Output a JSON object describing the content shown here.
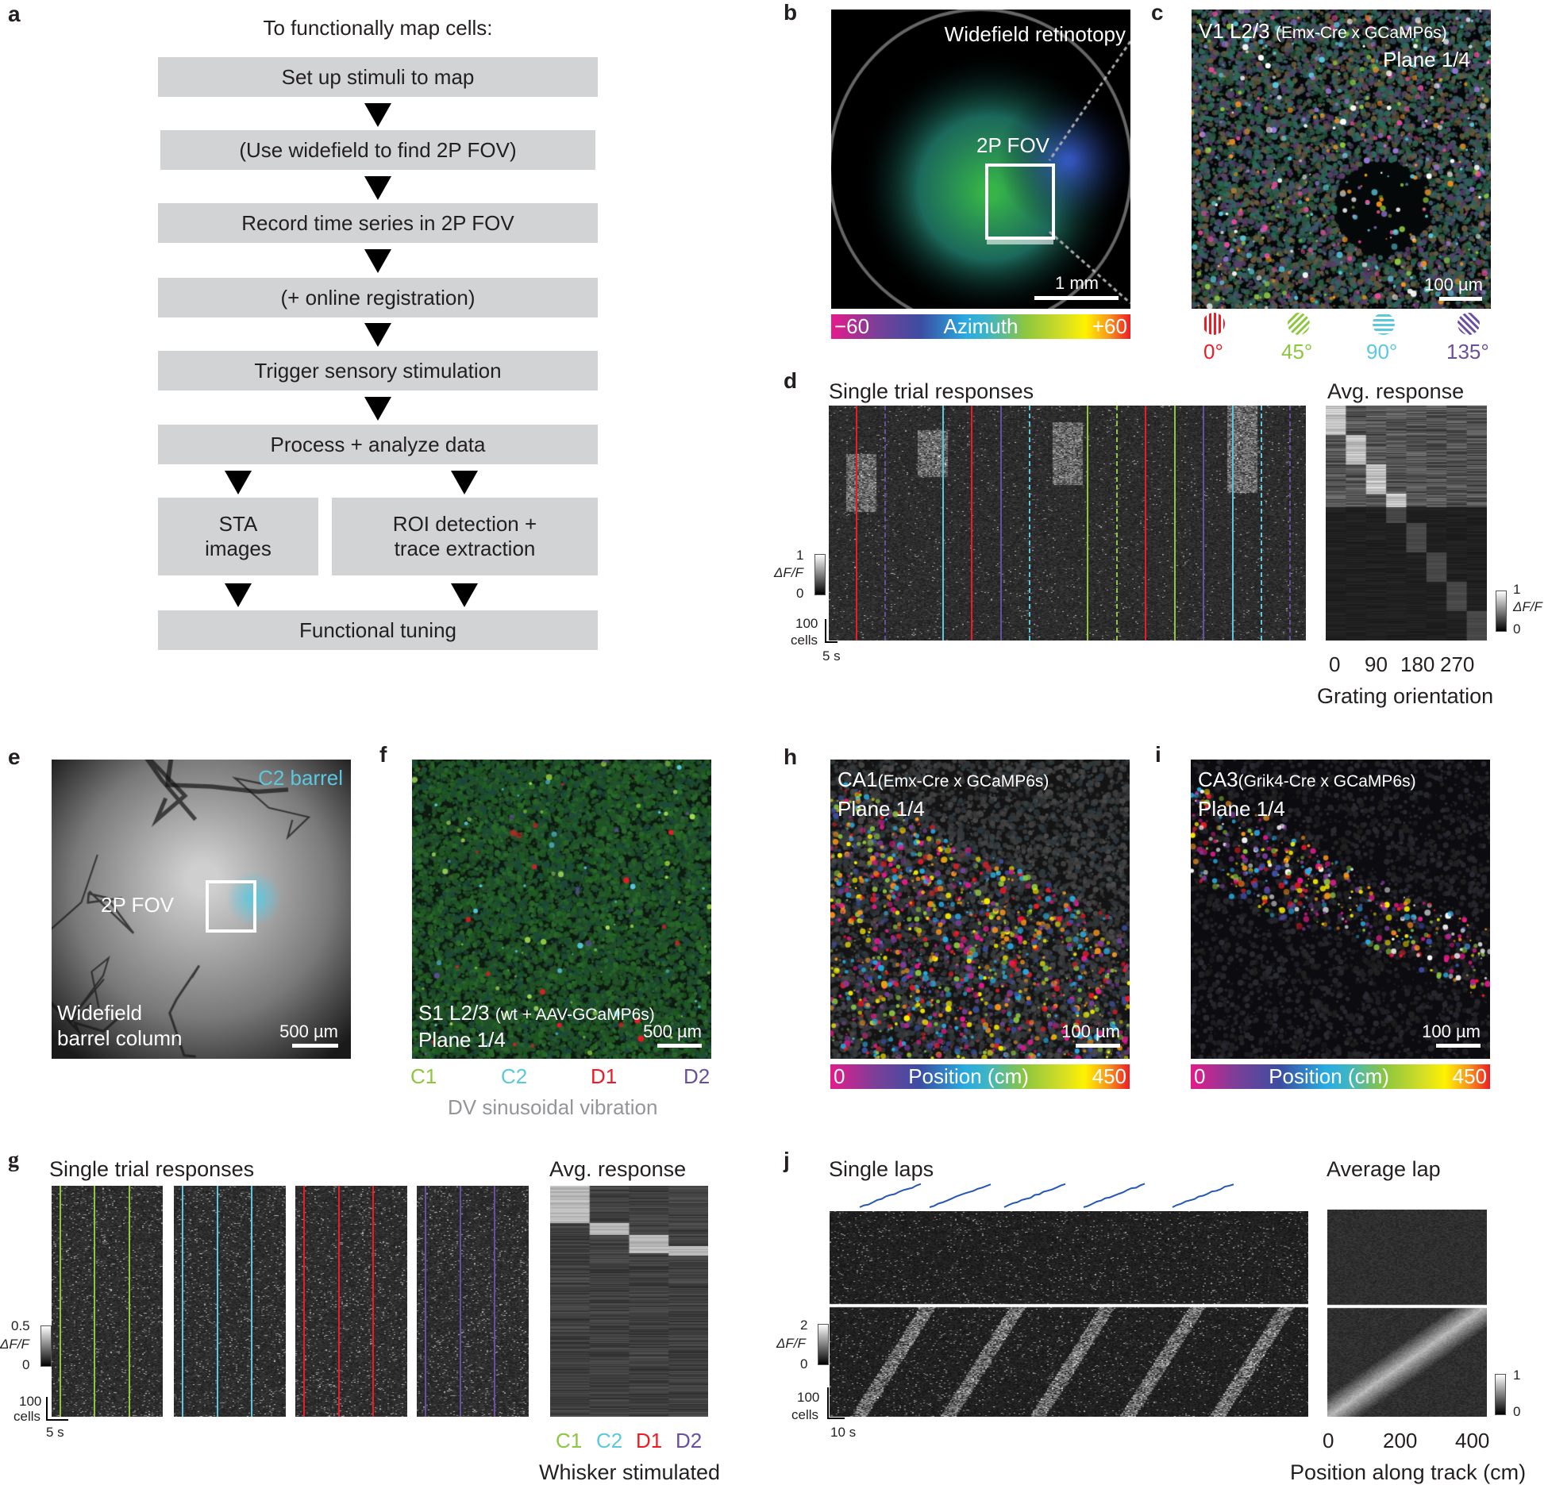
{
  "panel_a": {
    "label": "a",
    "title": "To functionally map cells:",
    "steps": [
      "Set up stimuli to map",
      "(Use widefield to find 2P FOV)",
      "Record time series in 2P FOV",
      "(+ online registration)",
      "Trigger sensory stimulation",
      "Process + analyze data"
    ],
    "branch_left": [
      "STA",
      "images"
    ],
    "branch_right": [
      "ROI detection +",
      "trace extraction"
    ],
    "final": "Functional tuning"
  },
  "panel_b": {
    "label": "b",
    "title": "Widefield retinotopy",
    "fov": "2P FOV",
    "scale": "1 mm",
    "colorbar": {
      "min": "−60",
      "label": "Azimuth",
      "max": "+60"
    }
  },
  "panel_c": {
    "label": "c",
    "title": "V1 L2/3",
    "subtitle": "(Emx-Cre x GCaMP6s)",
    "plane": "Plane 1/4",
    "scale": "100 µm",
    "orientations": [
      {
        "label": "0°",
        "color": "#ed1c24"
      },
      {
        "label": "45°",
        "color": "#8dc63f"
      },
      {
        "label": "90°",
        "color": "#5bc8e0"
      },
      {
        "label": "135°",
        "color": "#6a4fa0"
      }
    ]
  },
  "panel_d": {
    "label": "d",
    "single_title": "Single trial responses",
    "avg_title": "Avg. response",
    "cbar_max": "1",
    "cbar_label": "ΔF/F",
    "cbar_min": "0",
    "cells": "100",
    "cells_unit": "cells",
    "time": "5 s",
    "ticks": [
      "0",
      "90",
      "180",
      "270"
    ],
    "xlabel": "Grating orientation",
    "avg_cbar_max": "1",
    "avg_cbar_min": "0"
  },
  "panel_e": {
    "label": "e",
    "barrel": "C2 barrel",
    "fov": "2P FOV",
    "caption": [
      "Widefield",
      "barrel column"
    ],
    "scale": "500 µm"
  },
  "panel_f": {
    "label": "f",
    "title": "S1 L2/3",
    "subtitle": "(wt + AAV-GCaMP6s)",
    "plane": "Plane 1/4",
    "scale": "500 µm",
    "whiskers": [
      {
        "label": "C1",
        "color": "#8dc63f"
      },
      {
        "label": "C2",
        "color": "#5bc8e0"
      },
      {
        "label": "D1",
        "color": "#ed1c24"
      },
      {
        "label": "D2",
        "color": "#6a4fa0"
      }
    ],
    "stim_label": "DV sinusoidal vibration"
  },
  "panel_g": {
    "label": "g",
    "single_title": "Single trial responses",
    "avg_title": "Avg. response",
    "cbar_max": "0.5",
    "cbar_label": "ΔF/F",
    "cbar_min": "0",
    "cells": "100",
    "cells_unit": "cells",
    "time": "5 s",
    "ticks": [
      "C1",
      "C2",
      "D1",
      "D2"
    ],
    "xlabel": "Whisker stimulated"
  },
  "panel_h": {
    "label": "h",
    "title": "CA1",
    "subtitle": "(Emx-Cre x GCaMP6s)",
    "plane": "Plane 1/4",
    "scale": "100 µm",
    "colorbar": {
      "min": "0",
      "label": "Position (cm)",
      "max": "450"
    }
  },
  "panel_i": {
    "label": "i",
    "title": "CA3",
    "subtitle": "(Grik4-Cre x GCaMP6s)",
    "plane": "Plane 1/4",
    "scale": "100 µm",
    "colorbar": {
      "min": "0",
      "label": "Position (cm)",
      "max": "450"
    }
  },
  "panel_j": {
    "label": "j",
    "single_title": "Single laps",
    "avg_title": "Average lap",
    "cbar_max": "2",
    "cbar_label": "ΔF/F",
    "cbar_min": "0",
    "cells": "100",
    "cells_unit": "cells",
    "time": "10 s",
    "ticks": [
      "0",
      "200",
      "400"
    ],
    "xlabel": "Position along track (cm)",
    "avg_cbar_max": "1",
    "avg_cbar_min": "0"
  },
  "colors": {
    "red": "#ed1c24",
    "green": "#8dc63f",
    "cyan": "#5bc8e0",
    "purple": "#6a4fa0",
    "box": "#d1d3d4",
    "trace": "#2457b5"
  }
}
